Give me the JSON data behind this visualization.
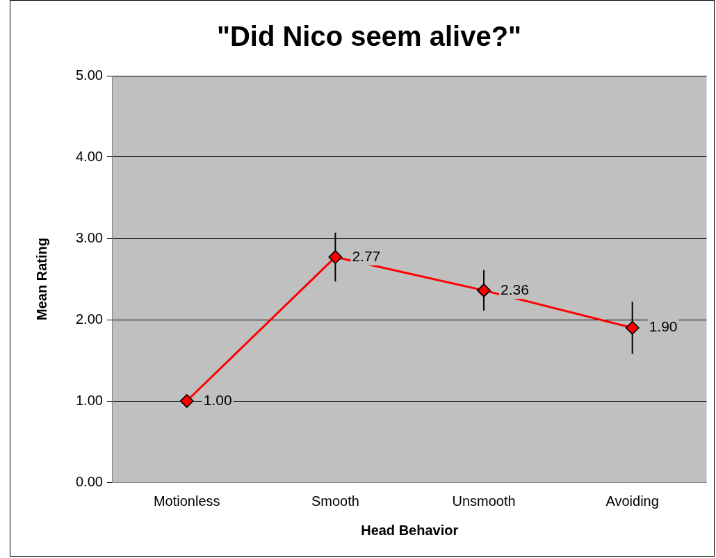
{
  "chart_data": {
    "type": "line",
    "title": "\"Did Nico seem alive?\"",
    "xlabel": "Head Behavior",
    "ylabel": "Mean Rating",
    "categories": [
      "Motionless",
      "Smooth",
      "Unsmooth",
      "Avoiding"
    ],
    "series": [
      {
        "color": "#ff0000",
        "values": [
          1.0,
          2.77,
          2.36,
          1.9
        ],
        "errors": [
          null,
          0.3,
          0.25,
          0.32
        ],
        "value_labels": [
          "1.00",
          "2.77",
          "2.36",
          "1.90"
        ]
      }
    ],
    "ylim": [
      0,
      5
    ],
    "yticks": [
      {
        "value": 0,
        "label": "0.00"
      },
      {
        "value": 1,
        "label": "1.00"
      },
      {
        "value": 2,
        "label": "2.00"
      },
      {
        "value": 3,
        "label": "3.00"
      },
      {
        "value": 4,
        "label": "4.00"
      },
      {
        "value": 5,
        "label": "5.00"
      }
    ],
    "grid": "y",
    "legend": false,
    "marker": "diamond",
    "line_style": "solid"
  }
}
